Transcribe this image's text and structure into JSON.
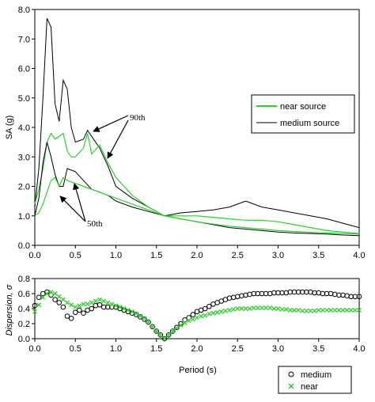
{
  "colors": {
    "near": "#33cc33",
    "medium": "#000000"
  },
  "chart_data": [
    {
      "type": "line",
      "ylabel": "SA (g)",
      "xlim": [
        0,
        4
      ],
      "ylim": [
        0,
        8
      ],
      "xticks": [
        "0.0",
        "0.5",
        "1.0",
        "1.5",
        "2.0",
        "2.5",
        "3.0",
        "3.5",
        "4.0"
      ],
      "yticks": [
        "0.0",
        "1.0",
        "2.0",
        "3.0",
        "4.0",
        "5.0",
        "6.0",
        "7.0",
        "8.0"
      ],
      "legend": {
        "placement": "right",
        "entries": [
          "near source",
          "medium source"
        ]
      },
      "annotations": {
        "p90": "90th",
        "p50": "50th"
      },
      "series": [
        {
          "name": "medium source",
          "percentile": "90th",
          "color": "#000000",
          "x": [
            0,
            0.05,
            0.1,
            0.15,
            0.2,
            0.25,
            0.3,
            0.35,
            0.4,
            0.45,
            0.5,
            0.6,
            0.65,
            0.7,
            0.8,
            0.9,
            1.0,
            1.2,
            1.4,
            1.6,
            1.8,
            2.0,
            2.2,
            2.4,
            2.5,
            2.6,
            2.7,
            2.8,
            3.0,
            3.2,
            3.4,
            3.6,
            3.8,
            4.0
          ],
          "y": [
            1.3,
            2.6,
            5.0,
            7.7,
            7.4,
            4.8,
            4.2,
            5.6,
            5.3,
            4.0,
            3.5,
            3.6,
            3.9,
            3.7,
            3.3,
            2.7,
            2.0,
            1.6,
            1.3,
            1.0,
            1.1,
            1.15,
            1.2,
            1.3,
            1.4,
            1.5,
            1.4,
            1.3,
            1.2,
            1.1,
            1.0,
            0.9,
            0.75,
            0.6
          ]
        },
        {
          "name": "near source",
          "percentile": "90th",
          "color": "#33cc33",
          "x": [
            0,
            0.05,
            0.1,
            0.15,
            0.2,
            0.25,
            0.3,
            0.35,
            0.4,
            0.45,
            0.5,
            0.6,
            0.65,
            0.7,
            0.8,
            0.9,
            1.0,
            1.2,
            1.4,
            1.6,
            1.8,
            2.0,
            2.2,
            2.4,
            2.6,
            2.8,
            3.0,
            3.2,
            3.4,
            3.6,
            3.8,
            4.0
          ],
          "y": [
            1.4,
            1.9,
            2.6,
            3.5,
            3.8,
            3.6,
            3.7,
            3.8,
            3.2,
            3.0,
            3.0,
            3.3,
            3.8,
            3.1,
            3.4,
            2.8,
            2.3,
            1.7,
            1.3,
            1.0,
            1.0,
            1.0,
            0.95,
            0.9,
            0.85,
            0.85,
            0.8,
            0.7,
            0.6,
            0.5,
            0.45,
            0.4
          ]
        },
        {
          "name": "medium source",
          "percentile": "50th",
          "color": "#000000",
          "x": [
            0,
            0.05,
            0.1,
            0.15,
            0.2,
            0.25,
            0.3,
            0.35,
            0.4,
            0.5,
            0.6,
            0.7,
            0.8,
            0.9,
            1.0,
            1.2,
            1.4,
            1.6,
            1.8,
            2.0,
            2.2,
            2.4,
            2.6,
            2.8,
            3.0,
            3.2,
            3.4,
            3.6,
            3.8,
            4.0
          ],
          "y": [
            1.0,
            1.6,
            2.8,
            3.5,
            3.0,
            2.4,
            2.0,
            2.0,
            2.6,
            2.5,
            2.2,
            1.9,
            1.8,
            1.7,
            1.5,
            1.3,
            1.15,
            1.0,
            0.9,
            0.8,
            0.7,
            0.6,
            0.55,
            0.5,
            0.45,
            0.42,
            0.4,
            0.38,
            0.35,
            0.33
          ]
        },
        {
          "name": "near source",
          "percentile": "50th",
          "color": "#33cc33",
          "x": [
            0,
            0.05,
            0.1,
            0.15,
            0.2,
            0.25,
            0.3,
            0.35,
            0.4,
            0.5,
            0.6,
            0.7,
            0.8,
            0.9,
            1.0,
            1.2,
            1.4,
            1.6,
            1.8,
            2.0,
            2.2,
            2.4,
            2.6,
            2.8,
            3.0,
            3.2,
            3.4,
            3.6,
            3.8,
            4.0
          ],
          "y": [
            1.0,
            1.1,
            1.4,
            1.8,
            2.2,
            2.3,
            2.0,
            2.3,
            2.2,
            2.1,
            2.0,
            1.9,
            1.8,
            1.7,
            1.6,
            1.4,
            1.2,
            1.0,
            0.9,
            0.8,
            0.72,
            0.65,
            0.6,
            0.55,
            0.5,
            0.47,
            0.44,
            0.42,
            0.4,
            0.38
          ]
        }
      ]
    },
    {
      "type": "scatter",
      "ylabel": "Dispersion, σ",
      "xlabel": "Period (s)",
      "xlim": [
        0,
        4
      ],
      "ylim": [
        0,
        0.8
      ],
      "xticks": [
        "0.0",
        "0.5",
        "1.0",
        "1.5",
        "2.0",
        "2.5",
        "3.0",
        "3.5",
        "4.0"
      ],
      "yticks": [
        "0.0",
        "0.2",
        "0.4",
        "0.6",
        "0.8"
      ],
      "legend": {
        "placement": "bottom-right",
        "entries": [
          "medium",
          "near"
        ]
      },
      "series": [
        {
          "name": "medium",
          "marker": "circle",
          "color": "#000000",
          "x": [
            0.0,
            0.05,
            0.1,
            0.15,
            0.2,
            0.25,
            0.3,
            0.35,
            0.4,
            0.45,
            0.5,
            0.55,
            0.6,
            0.65,
            0.7,
            0.75,
            0.8,
            0.85,
            0.9,
            0.95,
            1.0,
            1.05,
            1.1,
            1.15,
            1.2,
            1.25,
            1.3,
            1.35,
            1.4,
            1.45,
            1.5,
            1.55,
            1.6,
            1.65,
            1.7,
            1.75,
            1.8,
            1.85,
            1.9,
            1.95,
            2.0,
            2.05,
            2.1,
            2.15,
            2.2,
            2.25,
            2.3,
            2.35,
            2.4,
            2.45,
            2.5,
            2.55,
            2.6,
            2.65,
            2.7,
            2.75,
            2.8,
            2.85,
            2.9,
            2.95,
            3.0,
            3.05,
            3.1,
            3.15,
            3.2,
            3.25,
            3.3,
            3.35,
            3.4,
            3.45,
            3.5,
            3.55,
            3.6,
            3.65,
            3.7,
            3.75,
            3.8,
            3.85,
            3.9,
            3.95,
            4.0
          ],
          "y": [
            0.44,
            0.55,
            0.6,
            0.62,
            0.58,
            0.52,
            0.48,
            0.42,
            0.3,
            0.27,
            0.35,
            0.38,
            0.34,
            0.38,
            0.4,
            0.44,
            0.45,
            0.42,
            0.42,
            0.42,
            0.42,
            0.4,
            0.38,
            0.36,
            0.34,
            0.32,
            0.29,
            0.26,
            0.22,
            0.16,
            0.1,
            0.05,
            0.0,
            0.05,
            0.1,
            0.15,
            0.2,
            0.25,
            0.28,
            0.32,
            0.36,
            0.38,
            0.4,
            0.43,
            0.46,
            0.48,
            0.5,
            0.52,
            0.54,
            0.55,
            0.56,
            0.57,
            0.58,
            0.59,
            0.6,
            0.6,
            0.6,
            0.6,
            0.6,
            0.61,
            0.61,
            0.61,
            0.61,
            0.62,
            0.62,
            0.62,
            0.62,
            0.62,
            0.62,
            0.61,
            0.61,
            0.6,
            0.6,
            0.6,
            0.59,
            0.58,
            0.58,
            0.57,
            0.56,
            0.56,
            0.56
          ]
        },
        {
          "name": "near",
          "marker": "x",
          "color": "#33cc33",
          "x": [
            0.0,
            0.05,
            0.1,
            0.15,
            0.2,
            0.25,
            0.3,
            0.35,
            0.4,
            0.45,
            0.5,
            0.55,
            0.6,
            0.65,
            0.7,
            0.75,
            0.8,
            0.85,
            0.9,
            0.95,
            1.0,
            1.05,
            1.1,
            1.15,
            1.2,
            1.25,
            1.3,
            1.35,
            1.4,
            1.45,
            1.5,
            1.55,
            1.6,
            1.65,
            1.7,
            1.75,
            1.8,
            1.85,
            1.9,
            1.95,
            2.0,
            2.05,
            2.1,
            2.15,
            2.2,
            2.25,
            2.3,
            2.35,
            2.4,
            2.45,
            2.5,
            2.55,
            2.6,
            2.65,
            2.7,
            2.75,
            2.8,
            2.85,
            2.9,
            2.95,
            3.0,
            3.05,
            3.1,
            3.15,
            3.2,
            3.25,
            3.3,
            3.35,
            3.4,
            3.45,
            3.5,
            3.55,
            3.6,
            3.65,
            3.7,
            3.75,
            3.8,
            3.85,
            3.9,
            3.95,
            4.0
          ],
          "y": [
            0.36,
            0.45,
            0.55,
            0.6,
            0.62,
            0.6,
            0.56,
            0.52,
            0.48,
            0.45,
            0.42,
            0.44,
            0.46,
            0.46,
            0.48,
            0.5,
            0.52,
            0.5,
            0.48,
            0.46,
            0.44,
            0.42,
            0.4,
            0.38,
            0.36,
            0.33,
            0.3,
            0.27,
            0.22,
            0.16,
            0.1,
            0.05,
            0.0,
            0.05,
            0.1,
            0.14,
            0.18,
            0.21,
            0.24,
            0.26,
            0.28,
            0.3,
            0.31,
            0.33,
            0.34,
            0.35,
            0.36,
            0.37,
            0.38,
            0.39,
            0.4,
            0.4,
            0.4,
            0.4,
            0.41,
            0.41,
            0.41,
            0.41,
            0.41,
            0.4,
            0.4,
            0.39,
            0.39,
            0.38,
            0.38,
            0.38,
            0.37,
            0.37,
            0.37,
            0.37,
            0.38,
            0.38,
            0.38,
            0.38,
            0.38,
            0.38,
            0.38,
            0.38,
            0.38,
            0.38,
            0.38
          ]
        }
      ]
    }
  ]
}
